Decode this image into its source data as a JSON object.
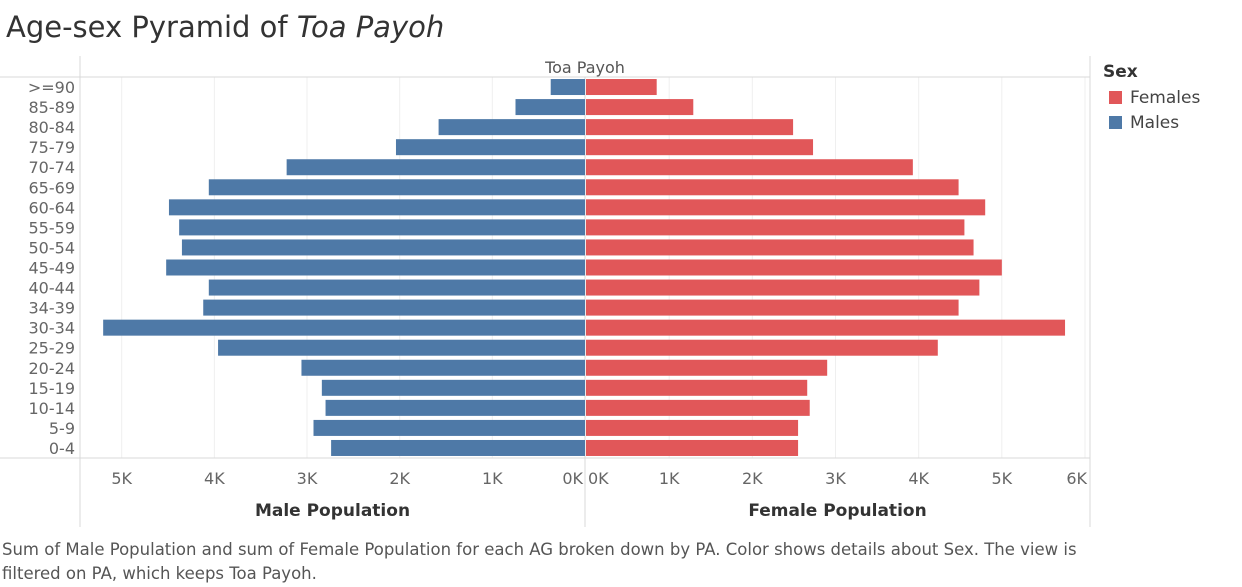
{
  "title": {
    "prefix": "Age-sex Pyramid of",
    "place": "Toa Payoh"
  },
  "caption": "Sum of Male Population and sum of Female Population for each AG broken down by PA.  Color shows details about Sex. The view is filtered on PA, which keeps Toa Payoh.",
  "legend": {
    "title": "Sex",
    "items": [
      {
        "label": "Females",
        "color": "#e15759"
      },
      {
        "label": "Males",
        "color": "#4e79a7"
      }
    ]
  },
  "chart_data": {
    "type": "bar",
    "orientation": "horizontal-pyramid",
    "header": "Toa Payoh",
    "categories": [
      ">=90",
      "85-89",
      "80-84",
      "75-79",
      "70-74",
      "65-69",
      "60-64",
      "55-59",
      "50-54",
      "45-49",
      "40-44",
      "34-39",
      "30-34",
      "25-29",
      "20-24",
      "15-19",
      "10-14",
      "5-9",
      "0-4"
    ],
    "series": [
      {
        "name": "Males",
        "color": "#4e79a7",
        "values": [
          370,
          750,
          1580,
          2040,
          3220,
          4060,
          4490,
          4380,
          4350,
          4520,
          4060,
          4120,
          5200,
          3960,
          3060,
          2840,
          2800,
          2930,
          2740
        ]
      },
      {
        "name": "Females",
        "color": "#e15759",
        "values": [
          850,
          1290,
          2490,
          2730,
          3930,
          4480,
          4800,
          4550,
          4660,
          5000,
          4730,
          4480,
          5760,
          4230,
          2900,
          2660,
          2690,
          2550,
          2550
        ]
      }
    ],
    "male_axis": {
      "label": "Male Population",
      "ticks": [
        "5K",
        "4K",
        "3K",
        "2K",
        "1K",
        "0K"
      ],
      "values": [
        5000,
        4000,
        3000,
        2000,
        1000,
        0
      ],
      "range": [
        0,
        5450
      ]
    },
    "female_axis": {
      "label": "Female Population",
      "ticks": [
        "0K",
        "1K",
        "2K",
        "3K",
        "4K",
        "5K",
        "6K"
      ],
      "values": [
        0,
        1000,
        2000,
        3000,
        4000,
        5000,
        6000
      ],
      "range": [
        0,
        6000
      ]
    }
  }
}
